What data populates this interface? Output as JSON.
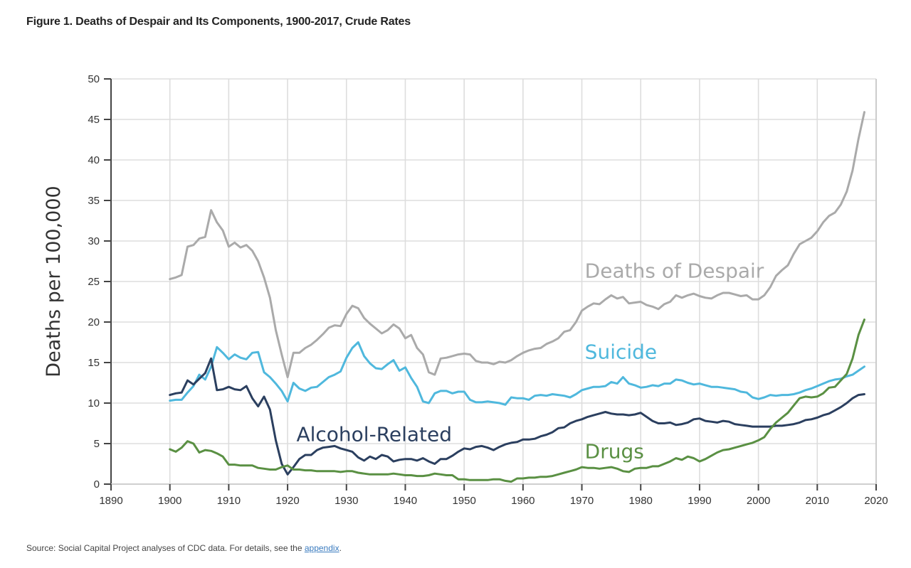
{
  "figure": {
    "title": "Figure 1. Deaths of Despair and Its Components, 1900-2017, Crude Rates",
    "source_prefix": "Source: Social Capital Project analyses of CDC data. For details, see the ",
    "source_link": "appendix",
    "source_suffix": "."
  },
  "chart_data": {
    "type": "line",
    "title": "Figure 1. Deaths of Despair and Its Components, 1900-2017, Crude Rates",
    "xlabel": "",
    "ylabel": "Deaths per 100,000",
    "xlim": [
      1890,
      2020
    ],
    "ylim": [
      0,
      50
    ],
    "xticks": [
      1890,
      1900,
      1910,
      1920,
      1930,
      1940,
      1950,
      1960,
      1970,
      1980,
      1990,
      2000,
      2010,
      2020
    ],
    "yticks": [
      0,
      5,
      10,
      15,
      20,
      25,
      30,
      35,
      40,
      45,
      50
    ],
    "grid": true,
    "legend": "inline-labels",
    "x_start": 1900,
    "series": [
      {
        "name": "Deaths of Despair",
        "color": "#aaaaaa",
        "label_pos": [
          1970.5,
          25.5
        ],
        "values": [
          25.3,
          25.5,
          25.8,
          29.3,
          29.5,
          30.3,
          30.5,
          33.8,
          32.3,
          31.3,
          29.3,
          29.8,
          29.2,
          29.5,
          28.8,
          27.5,
          25.5,
          23.0,
          19.0,
          16.0,
          13.2,
          16.2,
          16.2,
          16.8,
          17.2,
          17.8,
          18.5,
          19.3,
          19.6,
          19.5,
          21.0,
          22.0,
          21.7,
          20.5,
          19.8,
          19.2,
          18.6,
          19.0,
          19.7,
          19.2,
          18.0,
          18.4,
          16.8,
          16.0,
          13.8,
          13.5,
          15.5,
          15.6,
          15.8,
          16.0,
          16.1,
          16.0,
          15.2,
          15.0,
          15.0,
          14.8,
          15.1,
          15.0,
          15.3,
          15.8,
          16.2,
          16.5,
          16.7,
          16.8,
          17.3,
          17.6,
          18.0,
          18.8,
          19.0,
          20.0,
          21.4,
          21.9,
          22.3,
          22.2,
          22.8,
          23.3,
          22.9,
          23.1,
          22.3,
          22.4,
          22.5,
          22.1,
          21.9,
          21.6,
          22.2,
          22.5,
          23.3,
          23.0,
          23.3,
          23.5,
          23.2,
          23.0,
          22.9,
          23.3,
          23.6,
          23.6,
          23.4,
          23.2,
          23.3,
          22.8,
          22.8,
          23.3,
          24.3,
          25.7,
          26.4,
          27.0,
          28.4,
          29.6,
          30.0,
          30.4,
          31.2,
          32.3,
          33.1,
          33.5,
          34.5,
          36.1,
          38.7,
          42.6,
          45.9
        ],
        "values_end_year": 2017
      },
      {
        "name": "Suicide",
        "color": "#4fb8dd",
        "label_pos": [
          1970.5,
          15.5
        ],
        "values": [
          10.3,
          10.4,
          10.4,
          11.3,
          12.1,
          13.5,
          12.9,
          14.5,
          16.9,
          16.2,
          15.4,
          16.0,
          15.6,
          15.4,
          16.2,
          16.3,
          13.8,
          13.2,
          12.4,
          11.5,
          10.2,
          12.5,
          11.8,
          11.5,
          11.9,
          12.0,
          12.6,
          13.2,
          13.5,
          13.9,
          15.6,
          16.8,
          17.5,
          15.8,
          14.9,
          14.3,
          14.2,
          14.8,
          15.3,
          14.0,
          14.4,
          13.1,
          12.0,
          10.2,
          10.0,
          11.2,
          11.5,
          11.5,
          11.2,
          11.4,
          11.4,
          10.4,
          10.1,
          10.1,
          10.2,
          10.1,
          10.0,
          9.8,
          10.7,
          10.6,
          10.6,
          10.4,
          10.9,
          11.0,
          10.9,
          11.1,
          11.0,
          10.9,
          10.7,
          11.1,
          11.6,
          11.8,
          12.0,
          12.0,
          12.1,
          12.6,
          12.4,
          13.2,
          12.4,
          12.2,
          11.9,
          12.0,
          12.2,
          12.1,
          12.4,
          12.4,
          12.9,
          12.8,
          12.5,
          12.3,
          12.4,
          12.2,
          12.0,
          12.0,
          11.9,
          11.8,
          11.7,
          11.4,
          11.3,
          10.7,
          10.5,
          10.7,
          11.0,
          10.9,
          11.0,
          11.0,
          11.1,
          11.3,
          11.6,
          11.8,
          12.1,
          12.4,
          12.7,
          12.9,
          13.0,
          13.3,
          13.5,
          14.0,
          14.5
        ],
        "values_end_year": 2017
      },
      {
        "name": "Alcohol-Related",
        "color": "#2b3f5f",
        "label_pos": [
          1921.5,
          5.3
        ],
        "values": [
          11.0,
          11.2,
          11.3,
          12.8,
          12.3,
          13.0,
          13.7,
          15.5,
          11.6,
          11.7,
          12.0,
          11.7,
          11.6,
          12.1,
          10.6,
          9.6,
          10.8,
          9.2,
          5.4,
          2.5,
          1.2,
          2.1,
          3.1,
          3.6,
          3.6,
          4.2,
          4.5,
          4.6,
          4.7,
          4.4,
          4.2,
          4.0,
          3.3,
          2.9,
          3.4,
          3.1,
          3.6,
          3.4,
          2.8,
          3.0,
          3.1,
          3.1,
          2.9,
          3.2,
          2.8,
          2.5,
          3.1,
          3.1,
          3.5,
          4.0,
          4.4,
          4.3,
          4.6,
          4.7,
          4.5,
          4.2,
          4.6,
          4.9,
          5.1,
          5.2,
          5.5,
          5.5,
          5.6,
          5.9,
          6.1,
          6.4,
          6.9,
          7.0,
          7.5,
          7.8,
          8.0,
          8.3,
          8.5,
          8.7,
          8.9,
          8.7,
          8.6,
          8.6,
          8.5,
          8.6,
          8.8,
          8.3,
          7.8,
          7.5,
          7.5,
          7.6,
          7.3,
          7.4,
          7.6,
          8.0,
          8.1,
          7.8,
          7.7,
          7.6,
          7.8,
          7.7,
          7.4,
          7.3,
          7.2,
          7.1,
          7.1,
          7.1,
          7.1,
          7.2,
          7.2,
          7.3,
          7.4,
          7.6,
          7.9,
          8.0,
          8.2,
          8.5,
          8.7,
          9.1,
          9.5,
          10.0,
          10.6,
          11.0,
          11.1
        ],
        "values_end_year": 2017
      },
      {
        "name": "Drugs",
        "color": "#5a9043",
        "label_pos": [
          1970.5,
          3.2
        ],
        "values": [
          4.3,
          4.0,
          4.5,
          5.3,
          5.0,
          3.9,
          4.2,
          4.1,
          3.8,
          3.4,
          2.4,
          2.4,
          2.3,
          2.3,
          2.3,
          2.0,
          1.9,
          1.8,
          1.8,
          2.1,
          2.3,
          1.8,
          1.8,
          1.7,
          1.7,
          1.6,
          1.6,
          1.6,
          1.6,
          1.5,
          1.6,
          1.6,
          1.4,
          1.3,
          1.2,
          1.2,
          1.2,
          1.2,
          1.3,
          1.2,
          1.1,
          1.1,
          1.0,
          1.0,
          1.1,
          1.3,
          1.2,
          1.1,
          1.1,
          0.6,
          0.6,
          0.5,
          0.5,
          0.5,
          0.5,
          0.6,
          0.6,
          0.4,
          0.3,
          0.7,
          0.7,
          0.8,
          0.8,
          0.9,
          0.9,
          1.0,
          1.2,
          1.4,
          1.6,
          1.8,
          2.1,
          2.0,
          2.0,
          1.9,
          2.0,
          2.1,
          1.9,
          1.6,
          1.5,
          1.9,
          2.0,
          2.0,
          2.2,
          2.2,
          2.5,
          2.8,
          3.2,
          3.0,
          3.4,
          3.2,
          2.8,
          3.1,
          3.5,
          3.9,
          4.2,
          4.3,
          4.5,
          4.7,
          4.9,
          5.1,
          5.4,
          5.8,
          6.8,
          7.6,
          8.2,
          8.8,
          9.7,
          10.6,
          10.8,
          10.7,
          10.8,
          11.2,
          11.9,
          12.0,
          12.8,
          13.6,
          15.5,
          18.4,
          20.3
        ],
        "values_end_year": 2017
      }
    ]
  }
}
